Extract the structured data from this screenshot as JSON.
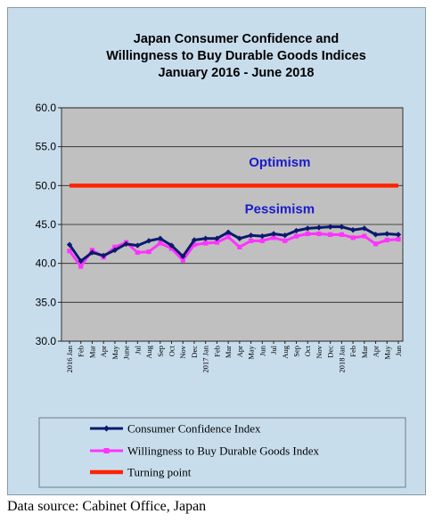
{
  "colors": {
    "background": "#c8ddec",
    "plot_area": "#c0c0c0",
    "consumer_confidence": "#0a1a6e",
    "willingness": "#ff33ff",
    "turning_point": "#ff2200",
    "optimism_text": "#1a1acc",
    "pessimism_text": "#1a1acc"
  },
  "source_note": "Data source: Cabinet Office, Japan",
  "chart_data": {
    "type": "line",
    "title_lines": [
      "Japan Consumer Confidence and",
      "Willingness to Buy Durable Goods Indices",
      "January 2016 - June 2018"
    ],
    "y_ticks": [
      "60.0",
      "55.0",
      "50.0",
      "45.0",
      "40.0",
      "35.0",
      "30.0"
    ],
    "ylim": [
      30,
      60
    ],
    "grid": true,
    "annotations": [
      {
        "text": "Optimism",
        "y": 53.0,
        "x_index": 15
      },
      {
        "text": "Pessimism",
        "y": 47.0,
        "x_index": 15
      }
    ],
    "categories": [
      "2016 Jan",
      "Feb",
      "Mar",
      "Apr",
      "May",
      "June",
      "Jul",
      "Aug",
      "Sep",
      "Oct",
      "Nov",
      "Dec",
      "2017 Jan",
      "Feb",
      "Mar",
      "Apr",
      "May",
      "Jun",
      "Jul",
      "Aug",
      "Sep",
      "Oct",
      "Nov",
      "Dec",
      "2018 Jan",
      "Feb",
      "Mar",
      "Apr",
      "May",
      "Jun"
    ],
    "series": [
      {
        "name": "Consumer Confidence Index",
        "color_key": "consumer_confidence",
        "values": [
          42.4,
          40.3,
          41.4,
          41.0,
          41.7,
          42.5,
          42.3,
          42.9,
          43.2,
          42.3,
          40.9,
          43.0,
          43.2,
          43.2,
          44.0,
          43.2,
          43.6,
          43.5,
          43.8,
          43.6,
          44.2,
          44.5,
          44.6,
          44.7,
          44.7,
          44.3,
          44.5,
          43.7,
          43.8,
          43.7
        ],
        "markers": "diamond"
      },
      {
        "name": "Willingness to Buy Durable Goods Index",
        "color_key": "willingness",
        "values": [
          41.6,
          39.6,
          41.7,
          40.8,
          42.1,
          42.7,
          41.4,
          41.5,
          42.6,
          41.9,
          40.4,
          42.4,
          42.6,
          42.7,
          43.4,
          42.1,
          42.9,
          42.9,
          43.3,
          42.9,
          43.5,
          43.8,
          43.8,
          43.7,
          43.7,
          43.3,
          43.5,
          42.5,
          43.0,
          43.1
        ],
        "markers": "square"
      },
      {
        "name": "Turning point",
        "color_key": "turning_point",
        "values": [
          50,
          50,
          50,
          50,
          50,
          50,
          50,
          50,
          50,
          50,
          50,
          50,
          50,
          50,
          50,
          50,
          50,
          50,
          50,
          50,
          50,
          50,
          50,
          50,
          50,
          50,
          50,
          50,
          50,
          50
        ],
        "markers": "none"
      }
    ],
    "legend_position": "bottom"
  }
}
